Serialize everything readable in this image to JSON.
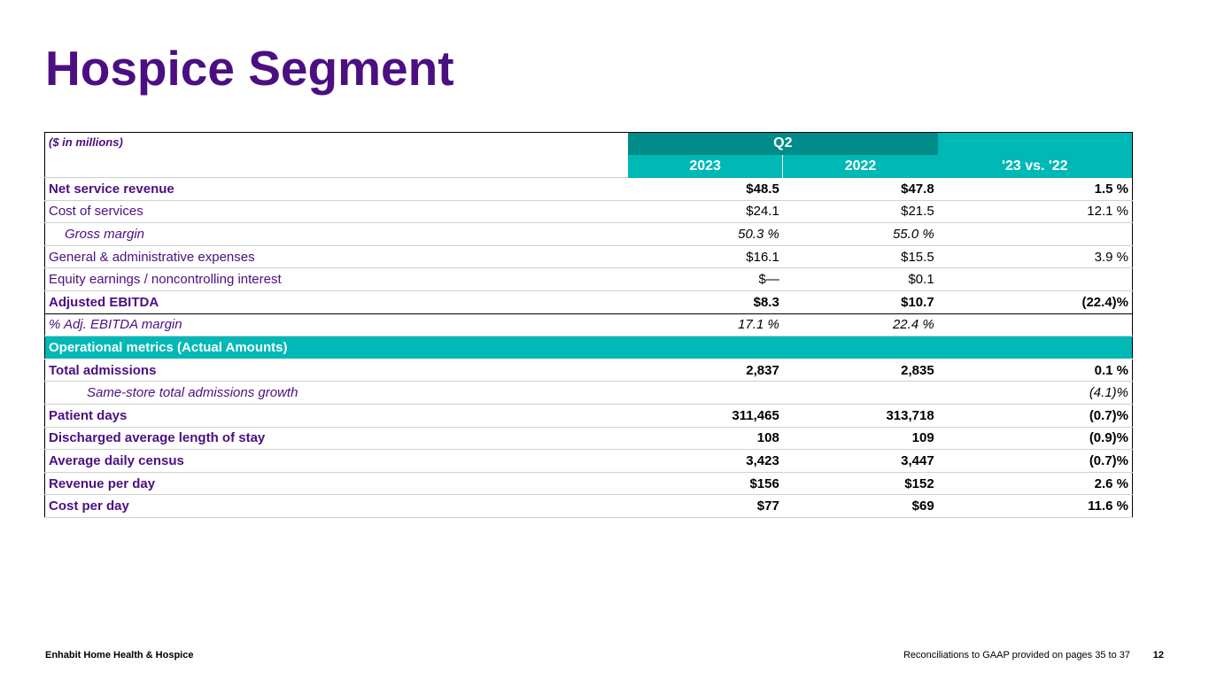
{
  "title": "Hospice Segment",
  "table": {
    "units": "($ in millions)",
    "period": "Q2",
    "columns": [
      "2023",
      "2022",
      "'23 vs. '22"
    ],
    "rows": [
      {
        "label": "Net service revenue",
        "v2023": "$48.5",
        "v2022": "$47.8",
        "change": "1.5 %",
        "style": "bold"
      },
      {
        "label": "Cost of services",
        "v2023": "$24.1",
        "v2022": "$21.5",
        "change": "12.1 %",
        "style": "normal"
      },
      {
        "label": "Gross margin",
        "v2023": "50.3 %",
        "v2022": "55.0 %",
        "change": "",
        "style": "italic-indent"
      },
      {
        "label": "General & administrative expenses",
        "v2023": "$16.1",
        "v2022": "$15.5",
        "change": "3.9 %",
        "style": "normal"
      },
      {
        "label": "Equity earnings / noncontrolling interest",
        "v2023": "$—",
        "v2022": "$0.1",
        "change": "",
        "style": "normal"
      },
      {
        "label": "Adjusted EBITDA",
        "v2023": "$8.3",
        "v2022": "$10.7",
        "change": "(22.4)%",
        "style": "bold-bordered"
      },
      {
        "label": "%  Adj. EBITDA margin",
        "v2023": "17.1 %",
        "v2022": "22.4 %",
        "change": "",
        "style": "italic"
      }
    ],
    "section_label": "Operational metrics (Actual Amounts)",
    "metric_rows": [
      {
        "label": "Total admissions",
        "v2023": "2,837",
        "v2022": "2,835",
        "change": "0.1 %",
        "style": "bold"
      },
      {
        "label": "Same-store total admissions growth",
        "v2023": "",
        "v2022": "",
        "change": "(4.1)%",
        "style": "italic-indent2"
      },
      {
        "label": "Patient days",
        "v2023": "311,465",
        "v2022": "313,718",
        "change": "(0.7)%",
        "style": "bold"
      },
      {
        "label": "Discharged average length of stay",
        "v2023": "108",
        "v2022": "109",
        "change": "(0.9)%",
        "style": "bold"
      },
      {
        "label": "Average daily census",
        "v2023": "3,423",
        "v2022": "3,447",
        "change": "(0.7)%",
        "style": "bold"
      },
      {
        "label": "Revenue per day",
        "v2023": "$156",
        "v2022": "$152",
        "change": "2.6 %",
        "style": "bold"
      },
      {
        "label": "Cost per day",
        "v2023": "$77",
        "v2022": "$69",
        "change": "11.6 %",
        "style": "bold"
      }
    ]
  },
  "footer": {
    "company": "Enhabit Home Health & Hospice",
    "note": "Reconciliations to GAAP provided on pages 35 to 37",
    "page": "12"
  },
  "colors": {
    "brand_purple": "#4b0f82",
    "header_teal_dark": "#008c88",
    "header_teal": "#00b8b6"
  }
}
